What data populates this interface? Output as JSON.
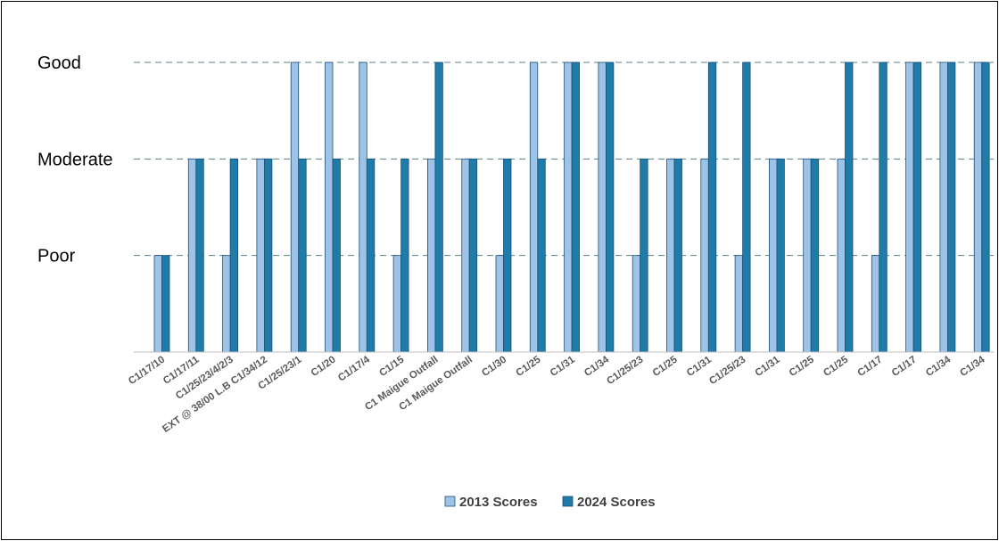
{
  "chart_data": {
    "type": "bar",
    "title": "",
    "xlabel": "",
    "ylabel": "",
    "y_levels": [
      {
        "label": "Poor",
        "value": 1
      },
      {
        "label": "Moderate",
        "value": 2
      },
      {
        "label": "Good",
        "value": 3
      }
    ],
    "ylim": [
      0,
      3
    ],
    "grid": "dashed horizontal lines at each level",
    "legend_position": "bottom-center",
    "categories": [
      "C1/17/10",
      "C1/17/11",
      "C1/25/23/4/2/3",
      "EXT @ 38/00 L.B C1/34/12",
      "C1/25/23/1",
      "C1/20",
      "C1/17/4",
      "C1/15",
      "C1 Maigue Outfall",
      "C1 Maigue Outfall",
      "C1/30",
      "C1/25",
      "C1/31",
      "C1/34",
      "C1/25/23",
      "C1/25",
      "C1/31",
      "C1/25/23",
      "C1/31",
      "C1/25",
      "C1/25",
      "C1/17",
      "C1/17",
      "C1/34",
      "C1/34"
    ],
    "series": [
      {
        "name": "2013 Scores",
        "color": "#9DC3E6",
        "values": [
          1,
          2,
          1,
          2,
          3,
          3,
          3,
          1,
          2,
          2,
          1,
          3,
          3,
          3,
          1,
          2,
          2,
          1,
          2,
          2,
          2,
          1,
          3,
          3,
          3
        ]
      },
      {
        "name": "2024 Scores",
        "color": "#1F7BA8",
        "values": [
          1,
          2,
          2,
          2,
          2,
          2,
          2,
          2,
          3,
          2,
          2,
          2,
          3,
          3,
          2,
          2,
          3,
          3,
          2,
          2,
          3,
          3,
          3,
          3,
          3
        ]
      }
    ]
  }
}
